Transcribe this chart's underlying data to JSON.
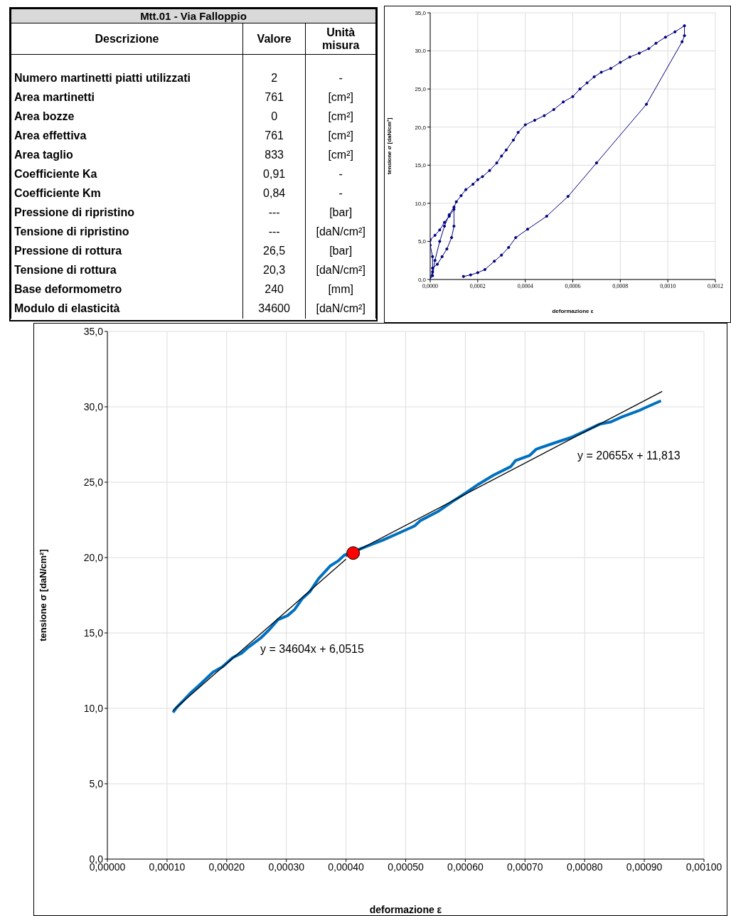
{
  "chart_data": [
    {
      "type": "other",
      "title": "Mtt.01 - Via Falloppio",
      "annotations": [
        "Descrizione",
        "Valore",
        "Unità misura",
        "Numero martinetti piatti utilizzati",
        "2",
        "-",
        "Area martinetti",
        "761",
        "[cm²]",
        "Area bozze",
        "0",
        "[cm²]",
        "Area effettiva",
        "761",
        "[cm²]",
        "Area taglio",
        "833",
        "[cm²]",
        "Coefficiente Ka",
        "0,91",
        "-",
        "Coefficiente Km",
        "0,84",
        "-",
        "Pressione di ripristino",
        "---",
        "[bar]",
        "Tensione di ripristino",
        "---",
        "[daN/cm²]",
        "Pressione di rottura",
        "26,5",
        "[bar]",
        "Tensione di rottura",
        "20,3",
        "[daN/cm²]",
        "Base deformometro",
        "240",
        "[mm]",
        "Modulo di elasticità",
        "34600",
        "[daN/cm²]"
      ]
    },
    {
      "type": "line",
      "xlabel": "deformazione ε",
      "ylabel": "tensione σ   [daN/cm²]",
      "grid": true,
      "marker": "circle",
      "xlim": [
        0,
        0.0012
      ],
      "xticks": [
        {
          "value": 0,
          "label": "0,0000"
        },
        {
          "value": 0.0002,
          "label": "0,0002"
        },
        {
          "value": 0.0004,
          "label": "0,0004"
        },
        {
          "value": 0.0006,
          "label": "0,0006"
        },
        {
          "value": 0.0008,
          "label": "0,0008"
        },
        {
          "value": 0.001,
          "label": "0,0010"
        },
        {
          "value": 0.0012,
          "label": "0,0012"
        }
      ],
      "ylim": [
        0,
        35
      ],
      "yticks": [
        {
          "value": 0,
          "label": "0,0"
        },
        {
          "value": 5,
          "label": "5,0"
        },
        {
          "value": 10,
          "label": "10,0"
        },
        {
          "value": 15,
          "label": "15,0"
        },
        {
          "value": 20,
          "label": "20,0"
        },
        {
          "value": 25,
          "label": "25,0"
        },
        {
          "value": 30,
          "label": "30,0"
        },
        {
          "value": 35,
          "label": "35,0"
        }
      ],
      "series": [
        {
          "color": "#000080",
          "x": [
            0,
            1e-05,
            1e-05,
            0,
            0,
            2e-05,
            4e-05,
            6e-05,
            8e-05,
            0.0001,
            0.0001,
            9e-05,
            7e-05,
            5e-05,
            3e-05,
            1e-05,
            1e-05,
            2e-05,
            4e-05,
            6e-05,
            8e-05,
            0.0001,
            0.00011,
            0.00013,
            0.00015,
            0.00018,
            0.0002,
            0.00022,
            0.00025,
            0.00028,
            0.0003,
            0.00032,
            0.00035,
            0.00037,
            0.0004,
            0.00044,
            0.00048,
            0.00052,
            0.00056,
            0.0006,
            0.00063,
            0.00066,
            0.00069,
            0.00072,
            0.00076,
            0.0008,
            0.00084,
            0.00088,
            0.00092,
            0.00095,
            0.00099,
            0.00103,
            0.00107,
            0.00107,
            0.00106,
            0.00091,
            0.0007,
            0.00058,
            0.00049,
            0.00041,
            0.00036,
            0.00033,
            0.0003,
            0.00027,
            0.00023,
            0.0002,
            0.00017,
            0.00014
          ],
          "values": [
            0.3,
            1,
            3,
            4.5,
            5.2,
            5.8,
            6.5,
            7.5,
            8.3,
            9.2,
            7,
            5.5,
            4,
            3,
            2,
            1.5,
            0.5,
            2.5,
            5,
            7,
            8.5,
            9.5,
            10.2,
            11,
            11.8,
            12.5,
            13.1,
            13.5,
            14.3,
            15.3,
            16.2,
            17,
            18.3,
            19.3,
            20.3,
            20.9,
            21.5,
            22.3,
            23.3,
            24,
            25,
            25.8,
            26.6,
            27.2,
            27.7,
            28.5,
            29.2,
            29.7,
            30.3,
            31,
            31.8,
            32.5,
            33.3,
            32,
            31.2,
            23,
            15.3,
            10.9,
            8.3,
            6.6,
            5.5,
            4.2,
            3.2,
            2.4,
            1.3,
            0.9,
            0.6,
            0.4
          ]
        }
      ]
    },
    {
      "type": "line",
      "xlabel": "deformazione ε",
      "ylabel": "tensione σ   [daN/cm²]",
      "grid": true,
      "xlim": [
        0,
        0.001
      ],
      "xticks": [
        {
          "value": 0,
          "label": "0,00000"
        },
        {
          "value": 0.0001,
          "label": "0,00010"
        },
        {
          "value": 0.0002,
          "label": "0,00020"
        },
        {
          "value": 0.0003,
          "label": "0,00030"
        },
        {
          "value": 0.0004,
          "label": "0,00040"
        },
        {
          "value": 0.0005,
          "label": "0,00050"
        },
        {
          "value": 0.0006,
          "label": "0,00060"
        },
        {
          "value": 0.0007,
          "label": "0,00070"
        },
        {
          "value": 0.0008,
          "label": "0,00080"
        },
        {
          "value": 0.0009,
          "label": "0,00090"
        },
        {
          "value": 0.001,
          "label": "0,00100"
        }
      ],
      "ylim": [
        0,
        35
      ],
      "yticks": [
        {
          "value": 0,
          "label": "0,0"
        },
        {
          "value": 5,
          "label": "5,0"
        },
        {
          "value": 10,
          "label": "10,0"
        },
        {
          "value": 15,
          "label": "15,0"
        },
        {
          "value": 20,
          "label": "20,0"
        },
        {
          "value": 25,
          "label": "25,0"
        },
        {
          "value": 30,
          "label": "30,0"
        },
        {
          "value": 35,
          "label": "35,0"
        }
      ],
      "annotations": [
        "y = 20655x + 11,813",
        "y = 34604x + 6,0515"
      ],
      "series": [
        {
          "color": "#0070c0",
          "x": [
            0.00011,
            0.000116,
            0.000139,
            0.000153,
            0.000177,
            0.000193,
            0.00021,
            0.000225,
            0.000236,
            0.000257,
            0.000271,
            0.000286,
            0.000302,
            0.000314,
            0.000327,
            0.000339,
            0.000354,
            0.000374,
            0.000387,
            0.000397,
            0.000432,
            0.000462,
            0.00049,
            0.000515,
            0.000525,
            0.000554,
            0.000579,
            0.0006,
            0.000622,
            0.000647,
            0.000676,
            0.000684,
            0.000708,
            0.000719,
            0.000747,
            0.000776,
            0.000797,
            0.000826,
            0.000844,
            0.000862,
            0.00089,
            0.000905,
            0.000928
          ],
          "values": [
            9.73,
            10.05,
            11,
            11.5,
            12.4,
            12.76,
            13.36,
            13.66,
            14.04,
            14.66,
            15.2,
            15.88,
            16.15,
            16.56,
            17.29,
            17.72,
            18.6,
            19.46,
            19.78,
            20.16,
            20.7,
            21.16,
            21.65,
            22.1,
            22.46,
            23.05,
            23.73,
            24.27,
            24.86,
            25.46,
            26.03,
            26.43,
            26.78,
            27.19,
            27.57,
            27.95,
            28.32,
            28.86,
            29,
            29.32,
            29.73,
            30,
            30.4
          ]
        },
        {
          "color": "#000000",
          "x": [
            0.00011,
            0.0004
          ],
          "values": [
            9.86,
            19.89
          ]
        },
        {
          "color": "#000000",
          "x": [
            0.0004,
            0.00093
          ],
          "values": [
            20.07,
            31.02
          ]
        },
        {
          "type": "scatter",
          "color": "#ff0000",
          "x": [
            0.000412
          ],
          "values": [
            20.3
          ]
        }
      ]
    }
  ]
}
